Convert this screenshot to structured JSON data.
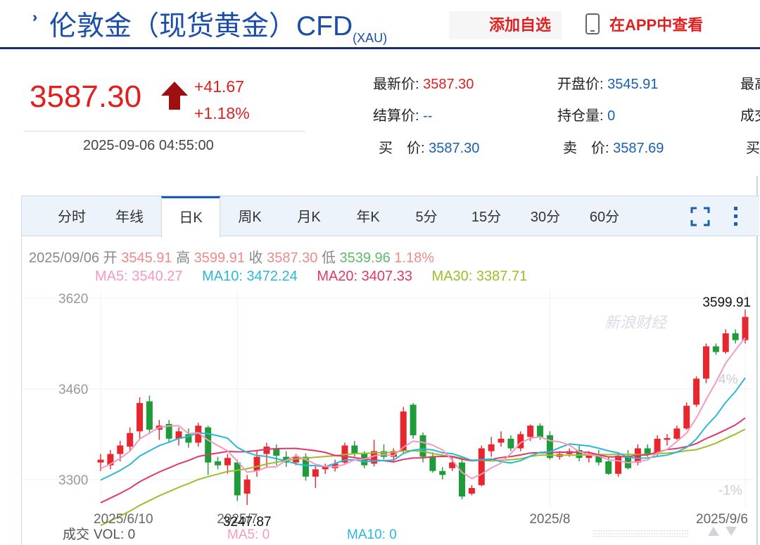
{
  "header": {
    "title_main": "伦敦金（现货黄金）CFD",
    "title_sub": "(XAU)",
    "add_favorite": "添加自选",
    "view_in_app": "在APP中查看"
  },
  "quote": {
    "price": "3587.30",
    "change": "+41.67",
    "change_pct": "+1.18%",
    "time": "2025-09-06 04:55:00",
    "fields": [
      {
        "label": "最新价: ",
        "value": "3587.30",
        "red": true
      },
      {
        "label": "开盘价: ",
        "value": "3545.91",
        "red": false
      },
      {
        "label": "最高",
        "value": "",
        "red": false
      },
      {
        "label": "结算价: ",
        "value": "--",
        "red": false
      },
      {
        "label": "持仓量: ",
        "value": "0",
        "red": false
      },
      {
        "label": "成交",
        "value": "",
        "red": false
      },
      {
        "label": "买　价: ",
        "value": "3587.30",
        "red": false
      },
      {
        "label": "卖　价: ",
        "value": "3587.69",
        "red": false
      },
      {
        "label": "买",
        "value": "",
        "red": false
      }
    ]
  },
  "tabs": [
    "分时",
    "年线",
    "日K",
    "周K",
    "月K",
    "年K",
    "5分",
    "15分",
    "30分",
    "60分"
  ],
  "active_tab": "日K",
  "info": {
    "date": "2025/09/06",
    "open_label": "开",
    "open": "3545.91",
    "high_label": "高",
    "high": "3599.91",
    "close_label": "收",
    "close": "3587.30",
    "low_label": "低",
    "low": "3539.96",
    "pct": "1.18%"
  },
  "ma": {
    "ma5": "MA5: 3540.27",
    "ma10": "MA10: 3472.24",
    "ma20": "MA20: 3407.33",
    "ma30": "MA30: 3387.71"
  },
  "volume": {
    "label": "成交",
    "vol": "VOL: 0",
    "ma5": "MA5: 0",
    "ma10": "MA10: 0"
  },
  "watermark": "新浪财经",
  "colors": {
    "up": "#e8262d",
    "down": "#1f9b3a",
    "ma5": "#f49ac1",
    "ma10": "#2ab8d8",
    "ma20": "#e0386c",
    "ma30": "#9bbf2a",
    "accent": "#1a5fb4"
  },
  "chart_data": {
    "type": "candlestick",
    "title": "",
    "ylim": [
      3270,
      3625
    ],
    "y_ticks": [
      3620,
      3460,
      3300
    ],
    "right_ticks": [
      "4%",
      "-1%"
    ],
    "x_labels": [
      {
        "label": "2025/6/10",
        "index": 0
      },
      {
        "label": "2025/7",
        "index": 14
      },
      {
        "label": "2025/8",
        "index": 46
      },
      {
        "label": "2025/9/6",
        "index": 66
      }
    ],
    "annotations": [
      {
        "text": "3599.91",
        "index": 66,
        "value": 3599.91,
        "kind": "high"
      },
      {
        "text": "3247.87",
        "index": 15,
        "value": 3247.87,
        "kind": "low"
      }
    ],
    "candles": [
      {
        "o": 3330,
        "c": 3335,
        "h": 3345,
        "l": 3315
      },
      {
        "o": 3325,
        "c": 3345,
        "h": 3352,
        "l": 3318
      },
      {
        "o": 3345,
        "c": 3360,
        "h": 3368,
        "l": 3332
      },
      {
        "o": 3358,
        "c": 3382,
        "h": 3392,
        "l": 3350
      },
      {
        "o": 3385,
        "c": 3435,
        "h": 3445,
        "l": 3372
      },
      {
        "o": 3438,
        "c": 3388,
        "h": 3448,
        "l": 3380
      },
      {
        "o": 3388,
        "c": 3395,
        "h": 3405,
        "l": 3370
      },
      {
        "o": 3398,
        "c": 3372,
        "h": 3405,
        "l": 3365
      },
      {
        "o": 3372,
        "c": 3385,
        "h": 3392,
        "l": 3360
      },
      {
        "o": 3380,
        "c": 3365,
        "h": 3390,
        "l": 3356
      },
      {
        "o": 3365,
        "c": 3395,
        "h": 3400,
        "l": 3358
      },
      {
        "o": 3392,
        "c": 3330,
        "h": 3395,
        "l": 3308
      },
      {
        "o": 3332,
        "c": 3325,
        "h": 3340,
        "l": 3318
      },
      {
        "o": 3325,
        "c": 3338,
        "h": 3345,
        "l": 3310
      },
      {
        "o": 3330,
        "c": 3272,
        "h": 3335,
        "l": 3262
      },
      {
        "o": 3275,
        "c": 3300,
        "h": 3308,
        "l": 3255
      },
      {
        "o": 3315,
        "c": 3340,
        "h": 3350,
        "l": 3305
      },
      {
        "o": 3345,
        "c": 3358,
        "h": 3365,
        "l": 3320
      },
      {
        "o": 3355,
        "c": 3342,
        "h": 3362,
        "l": 3325
      },
      {
        "o": 3340,
        "c": 3330,
        "h": 3350,
        "l": 3322
      },
      {
        "o": 3330,
        "c": 3340,
        "h": 3345,
        "l": 3325
      },
      {
        "o": 3340,
        "c": 3305,
        "h": 3346,
        "l": 3298
      },
      {
        "o": 3305,
        "c": 3318,
        "h": 3325,
        "l": 3285
      },
      {
        "o": 3318,
        "c": 3322,
        "h": 3328,
        "l": 3310
      },
      {
        "o": 3320,
        "c": 3328,
        "h": 3335,
        "l": 3314
      },
      {
        "o": 3330,
        "c": 3360,
        "h": 3365,
        "l": 3326
      },
      {
        "o": 3360,
        "c": 3345,
        "h": 3368,
        "l": 3340
      },
      {
        "o": 3345,
        "c": 3325,
        "h": 3350,
        "l": 3320
      },
      {
        "o": 3328,
        "c": 3350,
        "h": 3370,
        "l": 3323
      },
      {
        "o": 3350,
        "c": 3340,
        "h": 3362,
        "l": 3335
      },
      {
        "o": 3340,
        "c": 3350,
        "h": 3355,
        "l": 3330
      },
      {
        "o": 3350,
        "c": 3420,
        "h": 3428,
        "l": 3345
      },
      {
        "o": 3432,
        "c": 3378,
        "h": 3435,
        "l": 3372
      },
      {
        "o": 3378,
        "c": 3340,
        "h": 3383,
        "l": 3330
      },
      {
        "o": 3340,
        "c": 3315,
        "h": 3348,
        "l": 3312
      },
      {
        "o": 3315,
        "c": 3308,
        "h": 3322,
        "l": 3300
      },
      {
        "o": 3320,
        "c": 3330,
        "h": 3340,
        "l": 3315
      },
      {
        "o": 3330,
        "c": 3270,
        "h": 3335,
        "l": 3265
      },
      {
        "o": 3275,
        "c": 3285,
        "h": 3290,
        "l": 3272
      },
      {
        "o": 3290,
        "c": 3355,
        "h": 3360,
        "l": 3288
      },
      {
        "o": 3350,
        "c": 3362,
        "h": 3375,
        "l": 3340
      },
      {
        "o": 3365,
        "c": 3372,
        "h": 3385,
        "l": 3358
      },
      {
        "o": 3372,
        "c": 3355,
        "h": 3378,
        "l": 3350
      },
      {
        "o": 3355,
        "c": 3380,
        "h": 3385,
        "l": 3350
      },
      {
        "o": 3375,
        "c": 3395,
        "h": 3397,
        "l": 3368
      },
      {
        "o": 3395,
        "c": 3375,
        "h": 3399,
        "l": 3370
      },
      {
        "o": 3378,
        "c": 3338,
        "h": 3385,
        "l": 3335
      },
      {
        "o": 3340,
        "c": 3345,
        "h": 3350,
        "l": 3335
      },
      {
        "o": 3345,
        "c": 3350,
        "h": 3355,
        "l": 3340
      },
      {
        "o": 3352,
        "c": 3338,
        "h": 3362,
        "l": 3332
      },
      {
        "o": 3338,
        "c": 3345,
        "h": 3350,
        "l": 3330
      },
      {
        "o": 3345,
        "c": 3330,
        "h": 3352,
        "l": 3325
      },
      {
        "o": 3332,
        "c": 3310,
        "h": 3340,
        "l": 3308
      },
      {
        "o": 3310,
        "c": 3342,
        "h": 3345,
        "l": 3305
      },
      {
        "o": 3342,
        "c": 3320,
        "h": 3352,
        "l": 3318
      },
      {
        "o": 3330,
        "c": 3355,
        "h": 3362,
        "l": 3325
      },
      {
        "o": 3355,
        "c": 3345,
        "h": 3362,
        "l": 3340
      },
      {
        "o": 3348,
        "c": 3372,
        "h": 3378,
        "l": 3342
      },
      {
        "o": 3370,
        "c": 3373,
        "h": 3380,
        "l": 3360
      },
      {
        "o": 3372,
        "c": 3390,
        "h": 3395,
        "l": 3370
      },
      {
        "o": 3390,
        "c": 3430,
        "h": 3436,
        "l": 3388
      },
      {
        "o": 3432,
        "c": 3478,
        "h": 3482,
        "l": 3428
      },
      {
        "o": 3478,
        "c": 3535,
        "h": 3540,
        "l": 3470
      },
      {
        "o": 3535,
        "c": 3525,
        "h": 3540,
        "l": 3520
      },
      {
        "o": 3525,
        "c": 3558,
        "h": 3565,
        "l": 3522
      },
      {
        "o": 3558,
        "c": 3546,
        "h": 3565,
        "l": 3540
      },
      {
        "o": 3546,
        "c": 3587,
        "h": 3600,
        "l": 3540
      }
    ]
  }
}
